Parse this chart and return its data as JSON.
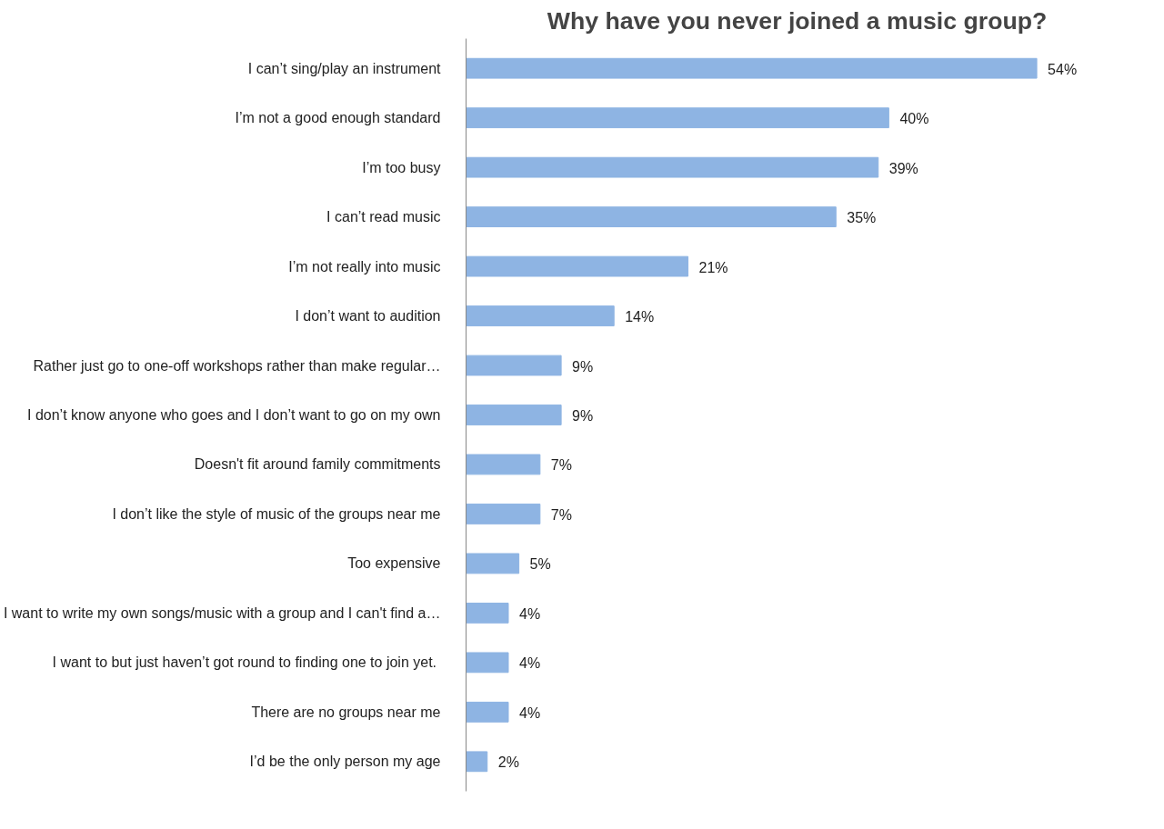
{
  "chart_data": {
    "type": "bar",
    "orientation": "horizontal",
    "title": "Why have you never joined a music group?",
    "categories": [
      "I can’t sing/play an instrument",
      "I’m not a good enough standard",
      "I’m too busy",
      "I can’t read music",
      "I’m not really into music",
      "I don’t want to audition",
      "Rather just go to one-off workshops rather than make regular…",
      "I don’t know anyone who goes and I don’t want to go on my own",
      "Doesn't fit around family commitments",
      "I don’t like the style of music of the groups near me",
      "Too expensive",
      "I want to write my own songs/music with a group and I can't find a…",
      "I want to  but just haven’t got round to finding one to join yet.",
      "There are no groups near me",
      "I’d be the only person my age"
    ],
    "values": [
      54,
      40,
      39,
      35,
      21,
      14,
      9,
      9,
      7,
      7,
      5,
      4,
      4,
      4,
      2
    ],
    "value_labels": [
      "54%",
      "40%",
      "39%",
      "35%",
      "21%",
      "14%",
      "9%",
      "9%",
      "7%",
      "7%",
      "5%",
      "4%",
      "4%",
      "4%",
      "2%"
    ],
    "color": "#8eb4e3",
    "grid": false,
    "tick_labels": "y"
  }
}
